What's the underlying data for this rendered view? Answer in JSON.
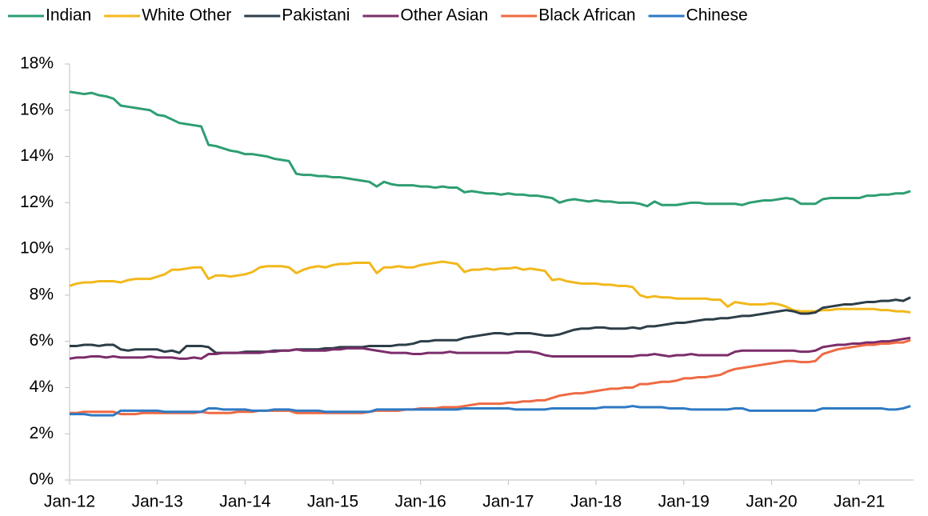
{
  "chart_data": {
    "type": "line",
    "categories": [
      "Jan-12",
      null,
      null,
      null,
      null,
      null,
      null,
      null,
      null,
      null,
      null,
      null,
      "Jan-13",
      null,
      null,
      null,
      null,
      null,
      null,
      null,
      null,
      null,
      null,
      null,
      "Jan-14",
      null,
      null,
      null,
      null,
      null,
      null,
      null,
      null,
      null,
      null,
      null,
      "Jan-15",
      null,
      null,
      null,
      null,
      null,
      null,
      null,
      null,
      null,
      null,
      null,
      "Jan-16",
      null,
      null,
      null,
      null,
      null,
      null,
      null,
      null,
      null,
      null,
      null,
      "Jan-17",
      null,
      null,
      null,
      null,
      null,
      null,
      null,
      null,
      null,
      null,
      null,
      "Jan-18",
      null,
      null,
      null,
      null,
      null,
      null,
      null,
      null,
      null,
      null,
      null,
      "Jan-19",
      null,
      null,
      null,
      null,
      null,
      null,
      null,
      null,
      null,
      null,
      null,
      "Jan-20",
      null,
      null,
      null,
      null,
      null,
      null,
      null,
      null,
      null,
      null,
      null,
      "Jan-21",
      null,
      null,
      null,
      null,
      null,
      null,
      null
    ],
    "series": [
      {
        "name": "Indian",
        "color": "#2e9e72",
        "values": [
          16.8,
          16.75,
          16.7,
          16.75,
          16.65,
          16.6,
          16.5,
          16.2,
          16.15,
          16.1,
          16.05,
          16.0,
          15.8,
          15.75,
          15.6,
          15.45,
          15.4,
          15.35,
          15.3,
          14.5,
          14.45,
          14.35,
          14.25,
          14.2,
          14.1,
          14.1,
          14.05,
          14.0,
          13.9,
          13.85,
          13.8,
          13.25,
          13.2,
          13.2,
          13.15,
          13.15,
          13.1,
          13.1,
          13.05,
          13.0,
          12.95,
          12.9,
          12.7,
          12.9,
          12.8,
          12.75,
          12.75,
          12.75,
          12.7,
          12.7,
          12.65,
          12.7,
          12.65,
          12.65,
          12.45,
          12.5,
          12.45,
          12.4,
          12.4,
          12.35,
          12.4,
          12.35,
          12.35,
          12.3,
          12.3,
          12.25,
          12.2,
          12.0,
          12.1,
          12.15,
          12.1,
          12.05,
          12.1,
          12.05,
          12.05,
          12.0,
          12.0,
          12.0,
          11.95,
          11.85,
          12.05,
          11.9,
          11.9,
          11.9,
          11.95,
          12.0,
          12.0,
          11.95,
          11.95,
          11.95,
          11.95,
          11.95,
          11.9,
          12.0,
          12.05,
          12.1,
          12.1,
          12.15,
          12.2,
          12.15,
          11.95,
          11.95,
          11.95,
          12.15,
          12.2,
          12.2,
          12.2,
          12.2,
          12.2,
          12.3,
          12.3,
          12.35,
          12.35,
          12.4,
          12.4,
          12.5
        ]
      },
      {
        "name": "White Other",
        "color": "#f2b81c",
        "values": [
          8.4,
          8.5,
          8.55,
          8.55,
          8.6,
          8.6,
          8.6,
          8.55,
          8.65,
          8.7,
          8.7,
          8.7,
          8.8,
          8.9,
          9.1,
          9.1,
          9.15,
          9.2,
          9.2,
          8.7,
          8.85,
          8.85,
          8.8,
          8.85,
          8.9,
          9.0,
          9.2,
          9.25,
          9.25,
          9.25,
          9.2,
          8.95,
          9.1,
          9.2,
          9.25,
          9.2,
          9.3,
          9.35,
          9.35,
          9.4,
          9.4,
          9.4,
          8.95,
          9.2,
          9.2,
          9.25,
          9.2,
          9.2,
          9.3,
          9.35,
          9.4,
          9.45,
          9.4,
          9.35,
          9.0,
          9.1,
          9.1,
          9.15,
          9.1,
          9.15,
          9.15,
          9.2,
          9.1,
          9.15,
          9.1,
          9.05,
          8.65,
          8.7,
          8.6,
          8.55,
          8.5,
          8.5,
          8.5,
          8.45,
          8.45,
          8.4,
          8.4,
          8.35,
          8.0,
          7.9,
          7.95,
          7.9,
          7.9,
          7.85,
          7.85,
          7.85,
          7.85,
          7.85,
          7.8,
          7.8,
          7.5,
          7.7,
          7.65,
          7.6,
          7.6,
          7.6,
          7.65,
          7.6,
          7.5,
          7.35,
          7.3,
          7.3,
          7.3,
          7.35,
          7.35,
          7.4,
          7.4,
          7.4,
          7.4,
          7.4,
          7.4,
          7.35,
          7.35,
          7.3,
          7.3,
          7.25
        ]
      },
      {
        "name": "Pakistani",
        "color": "#2d3e48",
        "values": [
          5.8,
          5.8,
          5.85,
          5.85,
          5.8,
          5.85,
          5.85,
          5.65,
          5.6,
          5.65,
          5.65,
          5.65,
          5.65,
          5.55,
          5.6,
          5.5,
          5.8,
          5.8,
          5.8,
          5.75,
          5.5,
          5.5,
          5.5,
          5.5,
          5.55,
          5.55,
          5.55,
          5.55,
          5.6,
          5.6,
          5.6,
          5.65,
          5.65,
          5.65,
          5.65,
          5.7,
          5.7,
          5.75,
          5.75,
          5.75,
          5.75,
          5.8,
          5.8,
          5.8,
          5.8,
          5.85,
          5.85,
          5.9,
          6.0,
          6.0,
          6.05,
          6.05,
          6.05,
          6.05,
          6.15,
          6.2,
          6.25,
          6.3,
          6.35,
          6.35,
          6.3,
          6.35,
          6.35,
          6.35,
          6.3,
          6.25,
          6.25,
          6.3,
          6.4,
          6.5,
          6.55,
          6.55,
          6.6,
          6.6,
          6.55,
          6.55,
          6.55,
          6.6,
          6.55,
          6.65,
          6.65,
          6.7,
          6.75,
          6.8,
          6.8,
          6.85,
          6.9,
          6.95,
          6.95,
          7.0,
          7.0,
          7.05,
          7.1,
          7.1,
          7.15,
          7.2,
          7.25,
          7.3,
          7.35,
          7.3,
          7.2,
          7.2,
          7.25,
          7.45,
          7.5,
          7.55,
          7.6,
          7.6,
          7.65,
          7.7,
          7.7,
          7.75,
          7.75,
          7.8,
          7.75,
          7.9
        ]
      },
      {
        "name": "Other Asian",
        "color": "#7b2d6b",
        "values": [
          5.25,
          5.3,
          5.3,
          5.35,
          5.35,
          5.3,
          5.35,
          5.3,
          5.3,
          5.3,
          5.3,
          5.35,
          5.3,
          5.3,
          5.3,
          5.25,
          5.25,
          5.3,
          5.25,
          5.45,
          5.45,
          5.5,
          5.5,
          5.5,
          5.5,
          5.5,
          5.5,
          5.55,
          5.55,
          5.6,
          5.6,
          5.65,
          5.6,
          5.6,
          5.6,
          5.6,
          5.65,
          5.65,
          5.7,
          5.7,
          5.7,
          5.65,
          5.6,
          5.55,
          5.5,
          5.5,
          5.5,
          5.45,
          5.45,
          5.5,
          5.5,
          5.5,
          5.55,
          5.5,
          5.5,
          5.5,
          5.5,
          5.5,
          5.5,
          5.5,
          5.5,
          5.55,
          5.55,
          5.55,
          5.5,
          5.4,
          5.35,
          5.35,
          5.35,
          5.35,
          5.35,
          5.35,
          5.35,
          5.35,
          5.35,
          5.35,
          5.35,
          5.35,
          5.4,
          5.4,
          5.45,
          5.4,
          5.35,
          5.4,
          5.4,
          5.45,
          5.4,
          5.4,
          5.4,
          5.4,
          5.4,
          5.55,
          5.6,
          5.6,
          5.6,
          5.6,
          5.6,
          5.6,
          5.6,
          5.6,
          5.55,
          5.55,
          5.6,
          5.75,
          5.8,
          5.85,
          5.85,
          5.9,
          5.9,
          5.95,
          5.95,
          6.0,
          6.0,
          6.05,
          6.1,
          6.15
        ]
      },
      {
        "name": "Black African",
        "color": "#ee6a43",
        "values": [
          2.9,
          2.9,
          2.95,
          2.95,
          2.95,
          2.95,
          2.95,
          2.85,
          2.85,
          2.85,
          2.9,
          2.9,
          2.9,
          2.9,
          2.9,
          2.9,
          2.9,
          2.9,
          2.95,
          2.9,
          2.9,
          2.9,
          2.9,
          2.95,
          2.95,
          2.95,
          3.0,
          3.0,
          3.0,
          3.0,
          3.0,
          2.9,
          2.9,
          2.9,
          2.9,
          2.9,
          2.9,
          2.9,
          2.9,
          2.9,
          2.9,
          2.95,
          3.0,
          3.0,
          3.0,
          3.0,
          3.05,
          3.05,
          3.1,
          3.1,
          3.1,
          3.15,
          3.15,
          3.15,
          3.2,
          3.25,
          3.3,
          3.3,
          3.3,
          3.3,
          3.35,
          3.35,
          3.4,
          3.4,
          3.45,
          3.45,
          3.55,
          3.65,
          3.7,
          3.75,
          3.75,
          3.8,
          3.85,
          3.9,
          3.95,
          3.95,
          4.0,
          4.0,
          4.15,
          4.15,
          4.2,
          4.25,
          4.25,
          4.3,
          4.4,
          4.4,
          4.45,
          4.45,
          4.5,
          4.55,
          4.7,
          4.8,
          4.85,
          4.9,
          4.95,
          5.0,
          5.05,
          5.1,
          5.15,
          5.15,
          5.1,
          5.1,
          5.15,
          5.45,
          5.55,
          5.65,
          5.7,
          5.75,
          5.8,
          5.85,
          5.85,
          5.9,
          5.9,
          5.95,
          5.95,
          6.05
        ]
      },
      {
        "name": "Chinese",
        "color": "#2e7ac4",
        "values": [
          2.85,
          2.85,
          2.85,
          2.8,
          2.8,
          2.8,
          2.8,
          3.0,
          3.0,
          3.0,
          3.0,
          3.0,
          3.0,
          2.95,
          2.95,
          2.95,
          2.95,
          2.95,
          2.95,
          3.1,
          3.1,
          3.05,
          3.05,
          3.05,
          3.05,
          3.0,
          3.0,
          3.0,
          3.05,
          3.05,
          3.05,
          3.0,
          3.0,
          3.0,
          3.0,
          2.95,
          2.95,
          2.95,
          2.95,
          2.95,
          2.95,
          2.95,
          3.05,
          3.05,
          3.05,
          3.05,
          3.05,
          3.05,
          3.05,
          3.05,
          3.05,
          3.05,
          3.05,
          3.05,
          3.1,
          3.1,
          3.1,
          3.1,
          3.1,
          3.1,
          3.1,
          3.05,
          3.05,
          3.05,
          3.05,
          3.05,
          3.1,
          3.1,
          3.1,
          3.1,
          3.1,
          3.1,
          3.1,
          3.15,
          3.15,
          3.15,
          3.15,
          3.2,
          3.15,
          3.15,
          3.15,
          3.15,
          3.1,
          3.1,
          3.1,
          3.05,
          3.05,
          3.05,
          3.05,
          3.05,
          3.05,
          3.1,
          3.1,
          3.0,
          3.0,
          3.0,
          3.0,
          3.0,
          3.0,
          3.0,
          3.0,
          3.0,
          3.0,
          3.1,
          3.1,
          3.1,
          3.1,
          3.1,
          3.1,
          3.1,
          3.1,
          3.1,
          3.05,
          3.05,
          3.1,
          3.2
        ]
      }
    ],
    "ylim": [
      0,
      18
    ],
    "yticks": [
      {
        "value": 0,
        "label": "0%"
      },
      {
        "value": 2,
        "label": "2%"
      },
      {
        "value": 4,
        "label": "4%"
      },
      {
        "value": 6,
        "label": "6%"
      },
      {
        "value": 8,
        "label": "8%"
      },
      {
        "value": 10,
        "label": "10%"
      },
      {
        "value": 12,
        "label": "12%"
      },
      {
        "value": 14,
        "label": "14%"
      },
      {
        "value": 16,
        "label": "16%"
      },
      {
        "value": 18,
        "label": "18%"
      }
    ],
    "legend": "top"
  }
}
